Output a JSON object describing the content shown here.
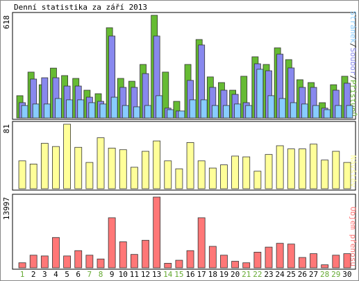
{
  "title": "Denní statistika za září 2013",
  "chart_data": [
    {
      "type": "bar",
      "ylim": [
        0,
        618
      ],
      "yticks": [
        618
      ],
      "legend_separator": "/",
      "legend_order": [
        2,
        1,
        0
      ],
      "series": [
        {
          "name": "Přístupů",
          "color": "#66bb33",
          "values": [
            134,
            276,
            200,
            300,
            255,
            238,
            167,
            146,
            543,
            238,
            221,
            322,
            618,
            276,
            100,
            322,
            472,
            247,
            213,
            167,
            251,
            368,
            322,
            422,
            351,
            230,
            213,
            92,
            200,
            251
          ]
        },
        {
          "name": "Soubor",
          "color": "#8888ee",
          "values": [
            92,
            234,
            242,
            242,
            192,
            192,
            125,
            100,
            493,
            184,
            184,
            267,
            493,
            59,
            42,
            226,
            439,
            184,
            167,
            142,
            92,
            326,
            284,
            384,
            301,
            184,
            184,
            59,
            167,
            209
          ]
        },
        {
          "name": "Stránek",
          "color": "#88ccff",
          "values": [
            75,
            84,
            84,
            117,
            109,
            109,
            92,
            84,
            125,
            75,
            67,
            75,
            134,
            50,
            42,
            109,
            109,
            75,
            75,
            84,
            75,
            293,
            134,
            117,
            92,
            84,
            75,
            50,
            75,
            75
          ]
        }
      ]
    },
    {
      "type": "bar",
      "ylim": [
        0,
        81
      ],
      "yticks": [
        81
      ],
      "series": [
        {
          "name": "Návštěv",
          "color": "#ffff99",
          "values": [
            35,
            31,
            57,
            53,
            81,
            52,
            33,
            64,
            51,
            49,
            27,
            47,
            60,
            35,
            25,
            58,
            35,
            26,
            30,
            41,
            40,
            22,
            43,
            54,
            50,
            50,
            56,
            36,
            47,
            33
          ]
        }
      ]
    },
    {
      "type": "bar",
      "ylim": [
        0,
        13997
      ],
      "yticks": [
        13997
      ],
      "categories": [
        "1",
        "2",
        "3",
        "4",
        "5",
        "6",
        "7",
        "8",
        "9",
        "10",
        "11",
        "12",
        "13",
        "14",
        "15",
        "16",
        "17",
        "18",
        "19",
        "20",
        "21",
        "22",
        "23",
        "24",
        "25",
        "26",
        "27",
        "28",
        "29",
        "30"
      ],
      "label_colors": [
        "#66aa33",
        "#000000",
        "#000000",
        "#000000",
        "#000000",
        "#000000",
        "#66aa33",
        "#66aa33",
        "#000000",
        "#000000",
        "#000000",
        "#000000",
        "#000000",
        "#66aa33",
        "#66aa33",
        "#000000",
        "#000000",
        "#000000",
        "#000000",
        "#000000",
        "#66aa33",
        "#66aa33",
        "#000000",
        "#000000",
        "#000000",
        "#000000",
        "#000000",
        "#66aa33",
        "#66aa33",
        "#000000"
      ],
      "series": [
        {
          "name": "Objem přenosu",
          "color": "#ff7777",
          "values": [
            1000,
            2500,
            2350,
            6000,
            2350,
            3400,
            2500,
            1750,
            9900,
            5150,
            2650,
            5450,
            13997,
            900,
            1500,
            3400,
            9900,
            4250,
            2500,
            1300,
            1000,
            3100,
            4100,
            4850,
            4700,
            2050,
            2800,
            600,
            2500,
            2800
          ]
        }
      ]
    }
  ]
}
